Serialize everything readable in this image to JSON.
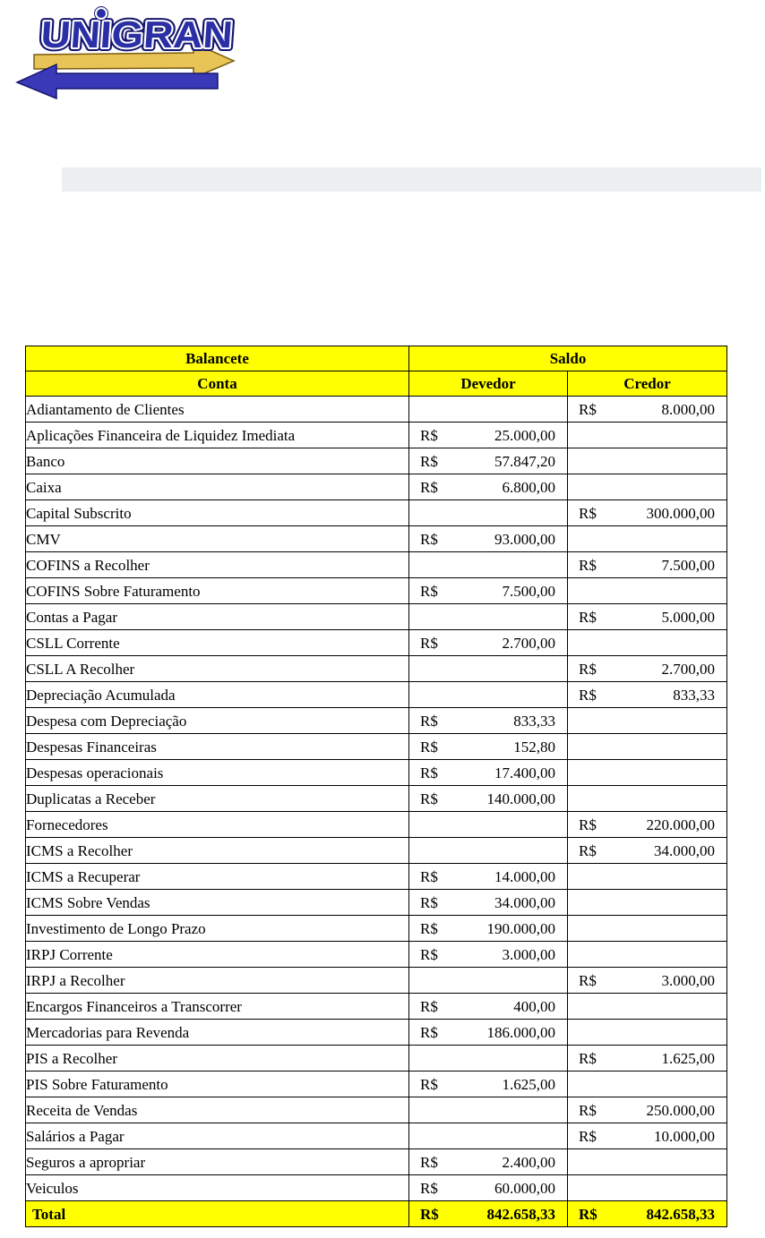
{
  "logo": {
    "text": "UNIGRAN"
  },
  "table": {
    "currency": "R$",
    "header": {
      "balancete": "Balancete",
      "saldo": "Saldo",
      "conta": "Conta",
      "devedor": "Devedor",
      "credor": "Credor"
    },
    "rows": [
      {
        "conta": "Adiantamento de Clientes",
        "devedor": "",
        "credor": "8.000,00"
      },
      {
        "conta": "Aplicações Financeira de Liquidez Imediata",
        "devedor": "25.000,00",
        "credor": ""
      },
      {
        "conta": "Banco",
        "devedor": "57.847,20",
        "credor": ""
      },
      {
        "conta": "Caixa",
        "devedor": "6.800,00",
        "credor": ""
      },
      {
        "conta": "Capital Subscrito",
        "devedor": "",
        "credor": "300.000,00"
      },
      {
        "conta": "CMV",
        "devedor": "93.000,00",
        "credor": ""
      },
      {
        "conta": "COFINS a Recolher",
        "devedor": "",
        "credor": "7.500,00"
      },
      {
        "conta": "COFINS Sobre Faturamento",
        "devedor": "7.500,00",
        "credor": ""
      },
      {
        "conta": "Contas a Pagar",
        "devedor": "",
        "credor": "5.000,00"
      },
      {
        "conta": "CSLL Corrente",
        "devedor": "2.700,00",
        "credor": ""
      },
      {
        "conta": "CSLL A Recolher",
        "devedor": "",
        "credor": "2.700,00"
      },
      {
        "conta": "Depreciação Acumulada",
        "devedor": "",
        "credor": "833,33"
      },
      {
        "conta": "Despesa com Depreciação",
        "devedor": "833,33",
        "credor": ""
      },
      {
        "conta": "Despesas Financeiras",
        "devedor": "152,80",
        "credor": ""
      },
      {
        "conta": "Despesas operacionais",
        "devedor": "17.400,00",
        "credor": ""
      },
      {
        "conta": "Duplicatas a Receber",
        "devedor": "140.000,00",
        "credor": ""
      },
      {
        "conta": "Fornecedores",
        "devedor": "",
        "credor": "220.000,00"
      },
      {
        "conta": "ICMS a Recolher",
        "devedor": "",
        "credor": "34.000,00"
      },
      {
        "conta": "ICMS a Recuperar",
        "devedor": "14.000,00",
        "credor": ""
      },
      {
        "conta": "ICMS Sobre Vendas",
        "devedor": "34.000,00",
        "credor": ""
      },
      {
        "conta": "Investimento de Longo Prazo",
        "devedor": "190.000,00",
        "credor": ""
      },
      {
        "conta": "IRPJ Corrente",
        "devedor": "3.000,00",
        "credor": ""
      },
      {
        "conta": "IRPJ a Recolher",
        "devedor": "",
        "credor": "3.000,00"
      },
      {
        "conta": "Encargos Financeiros a Transcorrer",
        "devedor": "400,00",
        "credor": ""
      },
      {
        "conta": "Mercadorias para Revenda",
        "devedor": "186.000,00",
        "credor": ""
      },
      {
        "conta": "PIS a Recolher",
        "devedor": "",
        "credor": "1.625,00"
      },
      {
        "conta": "PIS Sobre Faturamento",
        "devedor": "1.625,00",
        "credor": ""
      },
      {
        "conta": "Receita de Vendas",
        "devedor": "",
        "credor": "250.000,00"
      },
      {
        "conta": "Salários a Pagar",
        "devedor": "",
        "credor": "10.000,00"
      },
      {
        "conta": "Seguros a apropriar",
        "devedor": "2.400,00",
        "credor": ""
      },
      {
        "conta": "Veiculos",
        "devedor": "60.000,00",
        "credor": ""
      }
    ],
    "total": {
      "label": "Total",
      "devedor": "842.658,33",
      "credor": "842.658,33"
    }
  },
  "colors": {
    "header_bg": "#FFFF00",
    "table_border": "#000000",
    "divider_bar": "#ECEEF2",
    "logo_blue": "#2B2FA6",
    "logo_navy": "#14146E",
    "logo_gold": "#E8C355"
  }
}
